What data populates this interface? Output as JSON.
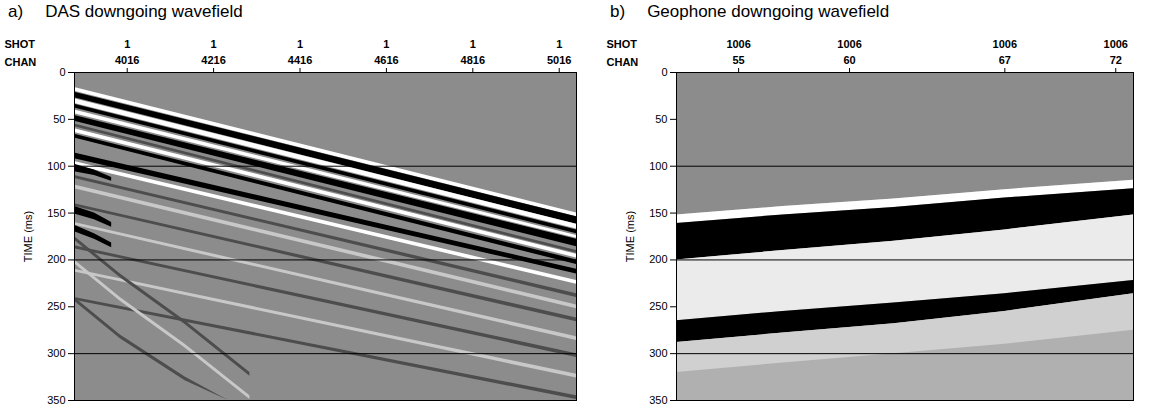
{
  "chart_data": [
    {
      "type": "area",
      "panel": "a)",
      "title": "DAS downgoing wavefield",
      "xlabel": "CHAN",
      "ylabel": "TIME (ms)",
      "shot_row": {
        "label": "SHOT",
        "values": [
          1,
          1,
          1,
          1,
          1,
          1
        ]
      },
      "xlim": [
        3894,
        5056
      ],
      "xticks": [
        4016,
        4216,
        4416,
        4616,
        4816,
        5016
      ],
      "ylim": [
        350,
        0
      ],
      "yticks": [
        0,
        50,
        100,
        150,
        200,
        250,
        300,
        350
      ],
      "hlines": [
        100,
        200,
        300
      ],
      "series": [
        {
          "color": "#ffffff",
          "x": [
            3894,
            5056
          ],
          "top": [
            16,
            150
          ],
          "bottom": [
            20,
            154
          ]
        },
        {
          "color": "#000000",
          "x": [
            3894,
            5056
          ],
          "top": [
            21,
            154
          ],
          "bottom": [
            27,
            162
          ]
        },
        {
          "color": "#ffffff",
          "x": [
            3894,
            5056
          ],
          "top": [
            28,
            162
          ],
          "bottom": [
            33,
            167
          ]
        },
        {
          "color": "#000000",
          "x": [
            3894,
            5056
          ],
          "top": [
            34,
            168
          ],
          "bottom": [
            38,
            172
          ]
        },
        {
          "color": "#ffffff",
          "x": [
            3894,
            5056
          ],
          "top": [
            40,
            174
          ],
          "bottom": [
            44,
            177
          ]
        },
        {
          "color": "#000000",
          "x": [
            3894,
            5056
          ],
          "top": [
            46,
            178
          ],
          "bottom": [
            52,
            186
          ]
        },
        {
          "color": "#4d4d4d",
          "x": [
            3894,
            5056
          ],
          "top": [
            55,
            190
          ],
          "bottom": [
            58,
            193
          ]
        },
        {
          "color": "#ffffff",
          "x": [
            3894,
            5056
          ],
          "top": [
            60,
            194
          ],
          "bottom": [
            64,
            198
          ]
        },
        {
          "color": "#000000",
          "x": [
            3894,
            5056
          ],
          "top": [
            66,
            200
          ],
          "bottom": [
            70,
            205
          ]
        },
        {
          "color": "#000000",
          "x": [
            3894,
            5056
          ],
          "top": [
            86,
            210
          ],
          "bottom": [
            92,
            215
          ]
        },
        {
          "color": "#ffffff",
          "x": [
            3894,
            5056
          ],
          "top": [
            95,
            222
          ],
          "bottom": [
            99,
            226
          ]
        },
        {
          "color": "#4d4d4d",
          "x": [
            3894,
            5056
          ],
          "top": [
            110,
            236
          ],
          "bottom": [
            113,
            240
          ]
        },
        {
          "color": "#c8c8c8",
          "x": [
            3894,
            5056
          ],
          "top": [
            120,
            248
          ],
          "bottom": [
            124,
            252
          ]
        },
        {
          "color": "#4d4d4d",
          "x": [
            3894,
            5056
          ],
          "top": [
            140,
            262
          ],
          "bottom": [
            143,
            266
          ]
        },
        {
          "color": "#c8c8c8",
          "x": [
            3894,
            5056
          ],
          "top": [
            160,
            282
          ],
          "bottom": [
            163,
            286
          ]
        },
        {
          "color": "#4d4d4d",
          "x": [
            3894,
            5056
          ],
          "top": [
            185,
            300
          ],
          "bottom": [
            188,
            304
          ]
        },
        {
          "color": "#c8c8c8",
          "x": [
            3894,
            5056
          ],
          "top": [
            210,
            322
          ],
          "bottom": [
            213,
            326
          ]
        },
        {
          "color": "#4d4d4d",
          "x": [
            3894,
            5056
          ],
          "top": [
            240,
            345
          ],
          "bottom": [
            243,
            349
          ]
        },
        {
          "color": "#000000",
          "x": [
            3894,
            3940,
            3980
          ],
          "top": [
            98,
            104,
            112
          ],
          "bottom": [
            106,
            110,
            116
          ]
        },
        {
          "color": "#000000",
          "x": [
            3894,
            3940,
            3980
          ],
          "top": [
            143,
            150,
            160
          ],
          "bottom": [
            151,
            157,
            165
          ]
        },
        {
          "color": "#000000",
          "x": [
            3894,
            3940,
            3980
          ],
          "top": [
            163,
            172,
            182
          ],
          "bottom": [
            170,
            178,
            187
          ]
        },
        {
          "color": "#4d4d4d",
          "x": [
            3894,
            4000,
            4150,
            4300
          ],
          "top": [
            175,
            215,
            265,
            320
          ],
          "bottom": [
            179,
            219,
            269,
            324
          ]
        },
        {
          "color": "#c8c8c8",
          "x": [
            3894,
            4000,
            4150,
            4300
          ],
          "top": [
            200,
            240,
            290,
            345
          ],
          "bottom": [
            204,
            244,
            294,
            349
          ]
        },
        {
          "color": "#4d4d4d",
          "x": [
            3894,
            4000,
            4150,
            4250
          ],
          "top": [
            240,
            280,
            325,
            350
          ],
          "bottom": [
            244,
            284,
            329,
            350
          ]
        }
      ]
    },
    {
      "type": "area",
      "panel": "b)",
      "title": "Geophone downgoing wavefield",
      "xlabel": "CHAN",
      "ylabel": "TIME (ms)",
      "shot_row": {
        "label": "SHOT",
        "values": [
          1006,
          1006,
          1006,
          1006
        ]
      },
      "xlim": [
        52.2,
        72.8
      ],
      "xticks": [
        55,
        60,
        67,
        72
      ],
      "ylim": [
        350,
        0
      ],
      "yticks": [
        0,
        50,
        100,
        150,
        200,
        250,
        300,
        350
      ],
      "hlines": [
        100,
        200,
        300
      ],
      "series": [
        {
          "color": "#b0b0b0",
          "x": [
            52.2,
            57,
            62,
            67,
            72.8
          ],
          "top": [
            152,
            143,
            135,
            125,
            115
          ],
          "bottom": [
            350,
            350,
            350,
            350,
            350
          ]
        },
        {
          "color": "#ffffff",
          "x": [
            52.2,
            57,
            62,
            67,
            72.8
          ],
          "top": [
            152,
            143,
            135,
            125,
            115
          ],
          "bottom": [
            161,
            152,
            144,
            134,
            124
          ]
        },
        {
          "color": "#000000",
          "x": [
            52.2,
            57,
            62,
            67,
            72.8
          ],
          "top": [
            161,
            152,
            144,
            134,
            124
          ],
          "bottom": [
            200,
            190,
            180,
            168,
            152
          ]
        },
        {
          "color": "#ebebeb",
          "x": [
            52.2,
            57,
            62,
            67,
            72.8
          ],
          "top": [
            200,
            190,
            180,
            168,
            152
          ],
          "bottom": [
            265,
            255,
            246,
            236,
            222
          ]
        },
        {
          "color": "#000000",
          "x": [
            52.2,
            57,
            62,
            67,
            72.8
          ],
          "top": [
            265,
            255,
            246,
            236,
            222
          ],
          "bottom": [
            288,
            278,
            268,
            255,
            236
          ]
        },
        {
          "color": "#d0d0d0",
          "x": [
            52.2,
            57,
            62,
            67,
            72.8
          ],
          "top": [
            288,
            278,
            268,
            255,
            236
          ],
          "bottom": [
            320,
            310,
            300,
            290,
            275
          ]
        }
      ]
    }
  ]
}
